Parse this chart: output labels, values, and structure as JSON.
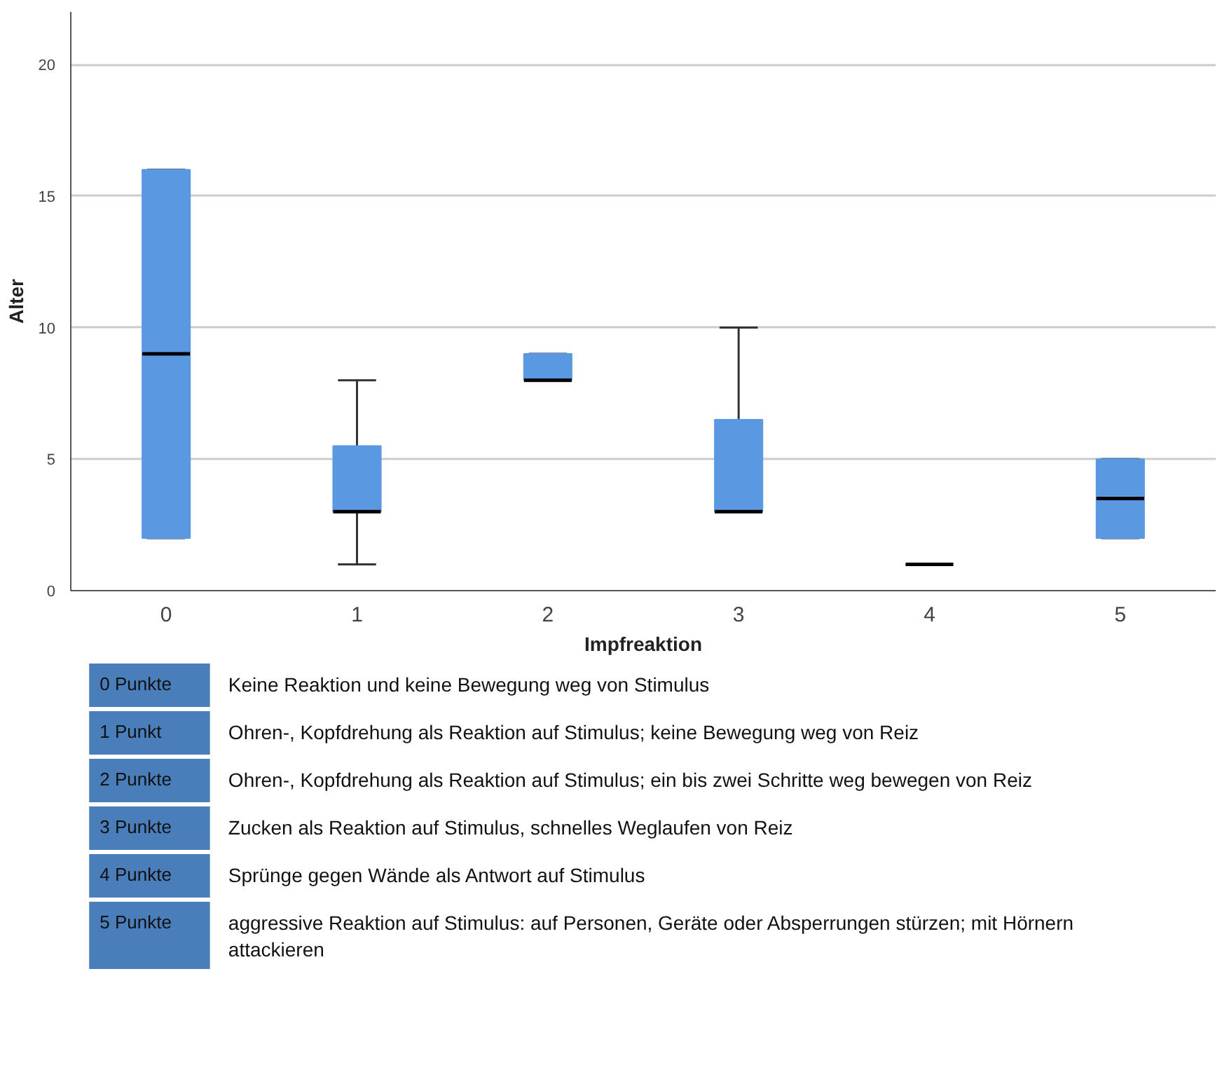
{
  "chart_data": {
    "type": "box",
    "xlabel": "Impfreaktion",
    "ylabel": "Alter",
    "categories": [
      "0",
      "1",
      "2",
      "3",
      "4",
      "5"
    ],
    "boxes": [
      {
        "low": 2,
        "q1": 2,
        "median": 9,
        "q3": 16,
        "high": 16
      },
      {
        "low": 1,
        "q1": 3,
        "median": 3,
        "q3": 5.5,
        "high": 8
      },
      {
        "low": 8,
        "q1": 8,
        "median": 8,
        "q3": 9,
        "high": 9
      },
      {
        "low": 3,
        "q1": 3,
        "median": 3,
        "q3": 6.5,
        "high": 10
      },
      {
        "low": 1,
        "q1": 1,
        "median": 1,
        "q3": 1,
        "high": 1
      },
      {
        "low": 2,
        "q1": 2,
        "median": 3.5,
        "q3": 5,
        "high": 5
      }
    ],
    "color": "#5a98e2",
    "ylim": [
      0,
      22
    ],
    "yticks": [
      0,
      5,
      10,
      15,
      20
    ],
    "grid": "y",
    "annotations": [
      "0 Punkte",
      "Keine Reaktion und keine Bewegung weg von Stimulus",
      "1 Punkt",
      "Ohren-, Kopfdrehung als Reaktion auf Stimulus; keine Bewegung weg von Reiz",
      "2 Punkte",
      "Ohren-, Kopfdrehung als Reaktion auf Stimulus; ein bis zwei Schritte weg bewegen von Reiz",
      "3 Punkte",
      "Zucken als Reaktion auf Stimulus, schnelles Weglaufen von Reiz",
      "4 Punkte",
      "Sprünge gegen Wände als Antwort auf Stimulus",
      "5 Punkte",
      "aggressive Reaktion auf Stimulus: auf Personen, Geräte oder Absperrungen stürzen; mit Hörnern attackieren"
    ]
  }
}
